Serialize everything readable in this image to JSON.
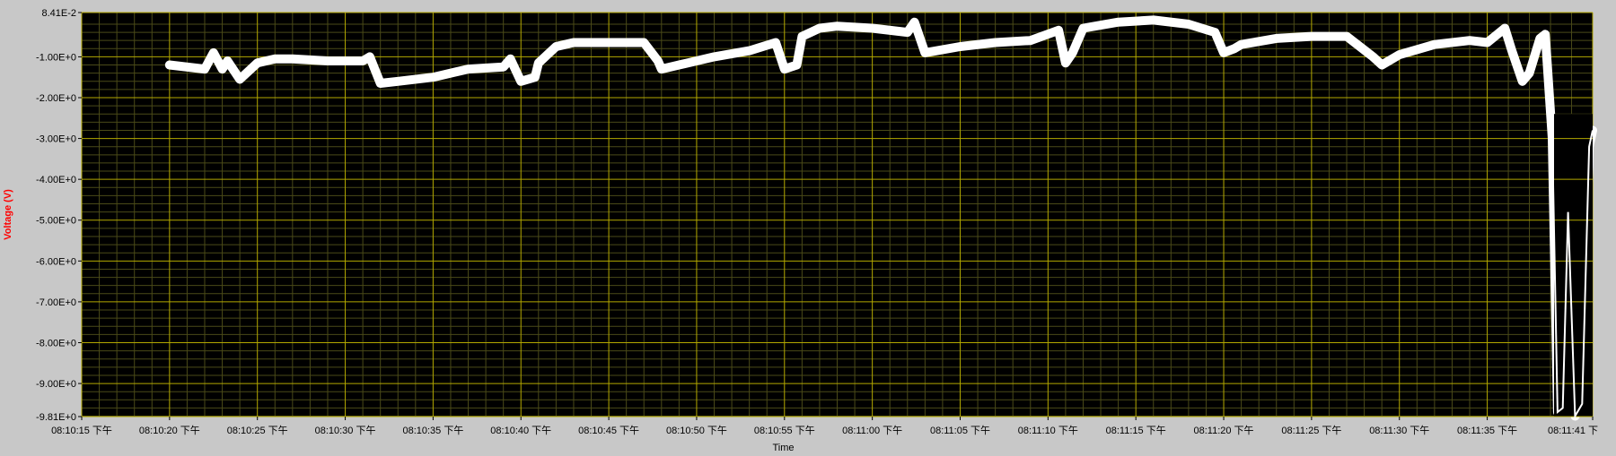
{
  "colors": {
    "panel_bg": "#c8c8c8",
    "plot_bg": "#000000",
    "major_grid": "#b3a800",
    "minor_grid": "#4a4a18",
    "trace": "#ffffff",
    "ylabel": "#ff0000",
    "tick_text": "#000000"
  },
  "chart_data": {
    "type": "line",
    "title": "",
    "xlabel": "Time",
    "ylabel": "Voltage (V)",
    "grid": true,
    "legend": "none",
    "ylim": [
      -9.81,
      0.0841
    ],
    "xlim": [
      "08:10:15",
      "08:11:41"
    ],
    "y_ticks": [
      0.0841,
      -1,
      -2,
      -3,
      -4,
      -5,
      -6,
      -7,
      -8,
      -9,
      -9.81
    ],
    "y_tick_labels": [
      "8.41E-2",
      "-1.00E+0",
      "-2.00E+0",
      "-3.00E+0",
      "-4.00E+0",
      "-5.00E+0",
      "-6.00E+0",
      "-7.00E+0",
      "-8.00E+0",
      "-9.00E+0",
      "-9.81E+0"
    ],
    "x_ticks": [
      "08:10:15",
      "08:10:20",
      "08:10:25",
      "08:10:30",
      "08:10:35",
      "08:10:40",
      "08:10:45",
      "08:10:50",
      "08:10:55",
      "08:11:00",
      "08:11:05",
      "08:11:10",
      "08:11:15",
      "08:11:20",
      "08:11:25",
      "08:11:30",
      "08:11:35",
      "08:11:41"
    ],
    "x_tick_labels": [
      "08:10:15 下午",
      "08:10:20 下午",
      "08:10:25 下午",
      "08:10:30 下午",
      "08:10:35 下午",
      "08:10:40 下午",
      "08:10:45 下午",
      "08:10:50 下午",
      "08:10:55 下午",
      "08:11:00 下午",
      "08:11:05 下午",
      "08:11:10 下午",
      "08:11:15 下午",
      "08:11:20 下午",
      "08:11:25 下午",
      "08:11:30 下午",
      "08:11:35 下午",
      "08:11:41 下"
    ],
    "series": [
      {
        "x": [
          "08:10:20",
          "08:10:22",
          "08:10:22.5",
          "08:10:23",
          "08:10:23.3",
          "08:10:24",
          "08:10:25",
          "08:10:26",
          "08:10:27",
          "08:10:29",
          "08:10:31",
          "08:10:31.4",
          "08:10:32",
          "08:10:33",
          "08:10:35",
          "08:10:37",
          "08:10:39",
          "08:10:39.4",
          "08:10:40",
          "08:10:40.8",
          "08:10:41",
          "08:10:42",
          "08:10:43",
          "08:10:45",
          "08:10:47",
          "08:10:47.8",
          "08:10:48",
          "08:10:49",
          "08:10:51",
          "08:10:53",
          "08:10:54.5",
          "08:10:55",
          "08:10:55.7",
          "08:10:56",
          "08:10:57",
          "08:10:58",
          "08:11:00",
          "08:11:02",
          "08:11:02.4",
          "08:11:03",
          "08:11:05",
          "08:11:07",
          "08:11:09",
          "08:11:10.6",
          "08:11:11",
          "08:11:11.4",
          "08:11:12",
          "08:11:14",
          "08:11:16",
          "08:11:18",
          "08:11:19.5",
          "08:11:20",
          "08:11:20.6",
          "08:11:21",
          "08:11:23",
          "08:11:25",
          "08:11:27",
          "08:11:28.5",
          "08:11:29",
          "08:11:30",
          "08:11:32",
          "08:11:34",
          "08:11:35",
          "08:11:36",
          "08:11:36.4",
          "08:11:37",
          "08:11:37.4",
          "08:11:38",
          "08:11:38.3",
          "08:11:38.7",
          "08:11:39",
          "08:11:39.3",
          "08:11:39.6",
          "08:11:40",
          "08:11:40.4",
          "08:11:40.8",
          "08:11:41"
        ],
        "y": [
          -1.2,
          -1.3,
          -0.9,
          -1.3,
          -1.1,
          -1.55,
          -1.15,
          -1.05,
          -1.05,
          -1.1,
          -1.1,
          -1.0,
          -1.65,
          -1.6,
          -1.5,
          -1.3,
          -1.25,
          -1.05,
          -1.6,
          -1.5,
          -1.15,
          -0.75,
          -0.65,
          -0.65,
          -0.65,
          -1.1,
          -1.3,
          -1.2,
          -1.0,
          -0.85,
          -0.65,
          -1.3,
          -1.2,
          -0.5,
          -0.3,
          -0.25,
          -0.3,
          -0.4,
          -0.15,
          -0.9,
          -0.75,
          -0.65,
          -0.6,
          -0.35,
          -1.15,
          -0.9,
          -0.3,
          -0.15,
          -0.1,
          -0.2,
          -0.4,
          -0.9,
          -0.8,
          -0.7,
          -0.55,
          -0.5,
          -0.5,
          -1.0,
          -1.2,
          -0.95,
          -0.7,
          -0.6,
          -0.65,
          -0.3,
          -0.85,
          -1.6,
          -1.4,
          -0.55,
          -0.45,
          -3.0,
          -9.7,
          -9.6,
          -4.8,
          -9.8,
          -9.5,
          -3.2,
          -2.8
        ]
      }
    ]
  }
}
